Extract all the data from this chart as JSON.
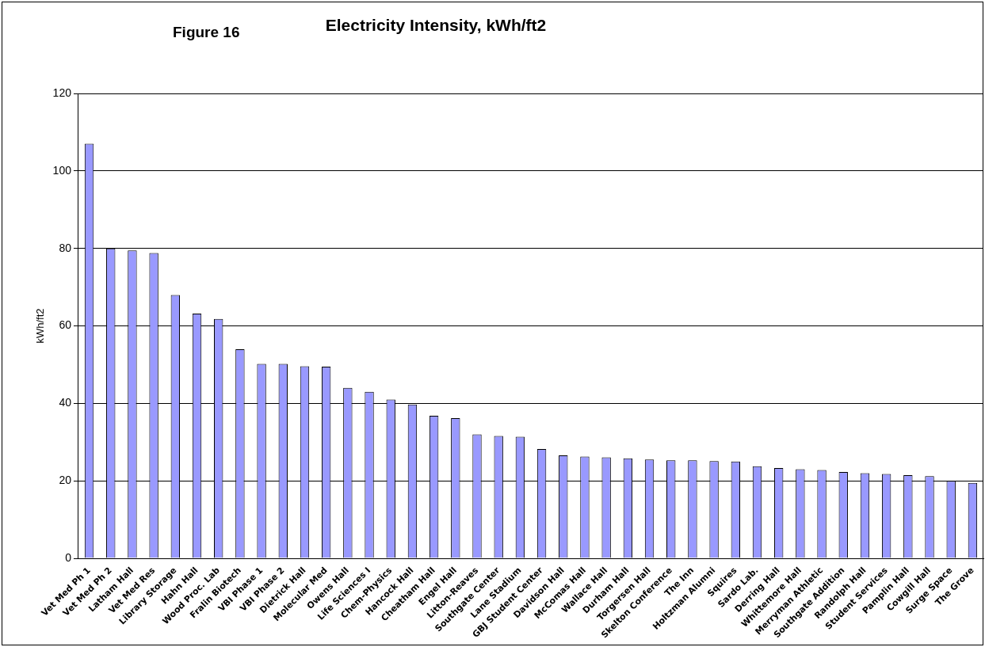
{
  "chart_data": {
    "type": "bar",
    "title": "Electricity Intensity, kWh/ft2",
    "ylabel": "kWh/ft2",
    "annotations": [
      "Figure 16"
    ],
    "categories": [
      "Vet Med Ph 1",
      "Vet Med Ph 2",
      "Latham Hall",
      "Vet Med Res",
      "Library Storage",
      "Hahn Hall",
      "Wood Proc. Lab",
      "Fralin Biotech",
      "VBI Phase 1",
      "VBI Phase 2",
      "Dietrick Hall",
      "Molecular Med",
      "Owens Hall",
      "Life Sciences I",
      "Chem-Physics",
      "Hancock Hall",
      "Cheatham Hall",
      "Engel Hall",
      "Litton-Reaves",
      "Southgate Center",
      "Lane Stadium",
      "GBJ Student Center",
      "Davidson Hall",
      "McComas Hall",
      "Wallace Hall",
      "Durham Hall",
      "Torgersen Hall",
      "Skelton Conference",
      "The Inn",
      "Holtzman Alumni",
      "Squires",
      "Sardo Lab.",
      "Derring Hall",
      "Whittemore Hall",
      "Merryman Athletic",
      "Southgate Addition",
      "Randolph Hall",
      "Student Services",
      "Pamplin Hall",
      "Cowgill Hall",
      "Surge Space",
      "The Grove"
    ],
    "values": [
      107,
      80,
      79.5,
      78.8,
      68,
      63.2,
      61.8,
      54,
      50.2,
      50.2,
      49.6,
      49.5,
      44,
      43,
      41,
      39.7,
      36.8,
      36.2,
      32,
      31.6,
      31.4,
      28.2,
      26.6,
      26.3,
      26.1,
      25.8,
      25.5,
      25.3,
      25.3,
      25.1,
      25,
      23.8,
      23.3,
      23,
      22.8,
      22.3,
      22,
      21.8,
      21.5,
      21.2,
      20,
      19.5
    ],
    "color": "#9999ff",
    "ylim": [
      0,
      120
    ],
    "yticks": [
      0,
      20,
      40,
      60,
      80,
      100,
      120
    ],
    "grid": "y",
    "legend": false
  }
}
